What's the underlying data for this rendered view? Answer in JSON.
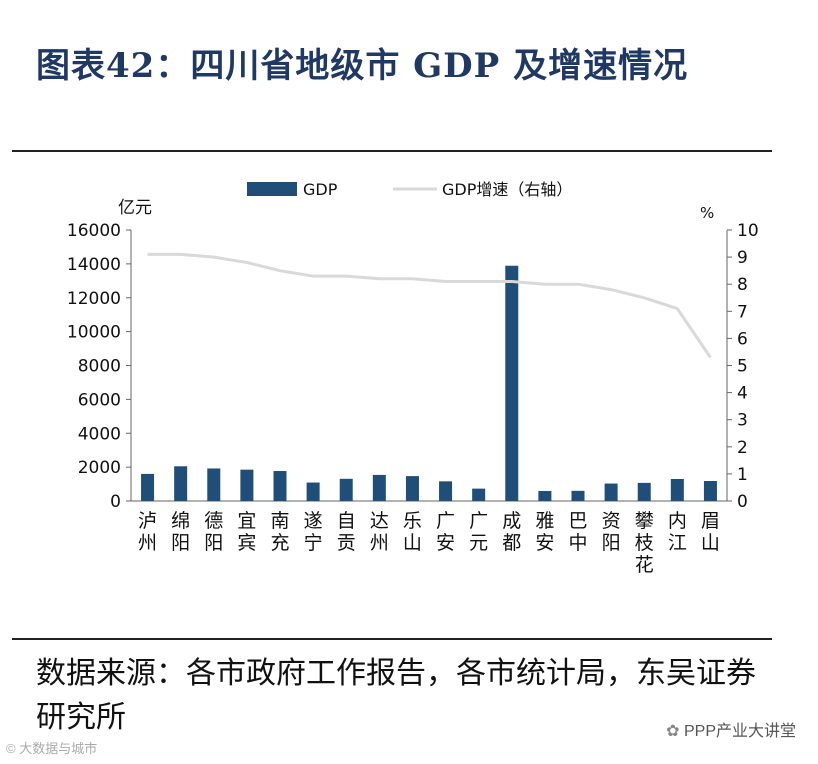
{
  "title": "图表42：四川省地级市 GDP 及增速情况",
  "source": "数据来源：各市政府工作报告，各市统计局，东吴证券研究所",
  "wechat_label": "PPP产业大讲堂",
  "watermark": "© 大数据与城市",
  "colors": {
    "bar": "#1f4e79",
    "line": "#d9d9d9",
    "title": "#1f3864"
  },
  "chart_data": {
    "type": "bar+line",
    "categories": [
      "泸州",
      "绵阳",
      "德阳",
      "宜宾",
      "南充",
      "遂宁",
      "自贡",
      "达州",
      "乐山",
      "广安",
      "广元",
      "成都",
      "雅安",
      "巴中",
      "资阳",
      "攀枝花",
      "内江",
      "眉山"
    ],
    "series": [
      {
        "name": "GDP",
        "type": "bar",
        "axis": "left",
        "values": [
          1600,
          2050,
          1920,
          1850,
          1770,
          1090,
          1310,
          1540,
          1470,
          1160,
          730,
          13890,
          590,
          600,
          1030,
          1070,
          1300,
          1180
        ]
      },
      {
        "name": "GDP增速（右轴）",
        "type": "line",
        "axis": "right",
        "values": [
          9.1,
          9.1,
          9.0,
          8.8,
          8.5,
          8.3,
          8.3,
          8.2,
          8.2,
          8.1,
          8.1,
          8.1,
          8.0,
          8.0,
          7.8,
          7.5,
          7.1,
          5.3
        ]
      }
    ],
    "ylabel_left": "亿元",
    "ylabel_right": "%",
    "ylim_left": [
      0,
      16000
    ],
    "ylim_right": [
      0,
      10
    ],
    "yticks_left": [
      "0",
      "2000",
      "4000",
      "6000",
      "8000",
      "10000",
      "12000",
      "14000",
      "16000"
    ],
    "yticks_right": [
      "0",
      "1",
      "2",
      "3",
      "4",
      "5",
      "6",
      "7",
      "8",
      "9",
      "10"
    ],
    "legend_position": "top",
    "grid": false
  }
}
